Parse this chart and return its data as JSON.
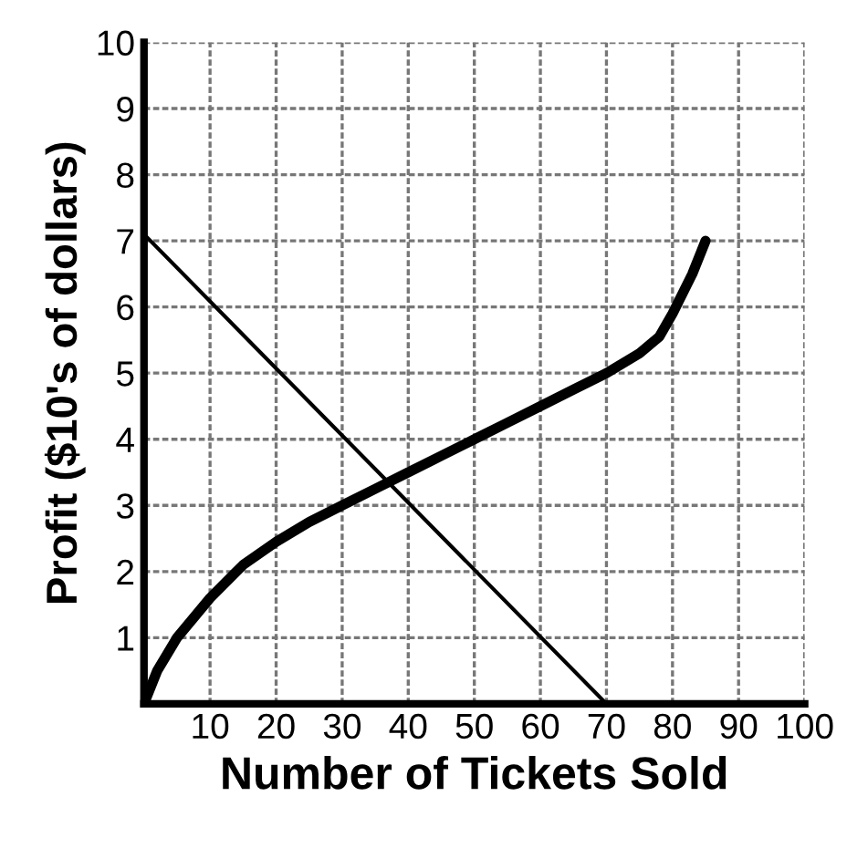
{
  "chart_data": {
    "type": "line",
    "xlabel": "Number of Tickets Sold",
    "ylabel": "Profit ($10's of dollars)",
    "xlim": [
      0,
      100
    ],
    "ylim": [
      0,
      10
    ],
    "xticks": [
      10,
      20,
      30,
      40,
      50,
      60,
      70,
      80,
      90,
      100
    ],
    "yticks": [
      1,
      2,
      3,
      4,
      5,
      6,
      7,
      8,
      9,
      10
    ],
    "grid": true,
    "series": [
      {
        "color": "#000000",
        "x": [
          0,
          2,
          5,
          10,
          15,
          20,
          25,
          30,
          35,
          40,
          45,
          50,
          55,
          60,
          65,
          70,
          75,
          78,
          80,
          83,
          85
        ],
        "values": [
          0,
          0.5,
          1.0,
          1.6,
          2.1,
          2.45,
          2.75,
          3.0,
          3.25,
          3.5,
          3.75,
          4.0,
          4.25,
          4.5,
          4.75,
          5.0,
          5.3,
          5.55,
          5.9,
          6.5,
          7.0
        ]
      },
      {
        "color": "#000000",
        "x": [
          0,
          70
        ],
        "values": [
          7.1,
          0
        ]
      }
    ]
  }
}
